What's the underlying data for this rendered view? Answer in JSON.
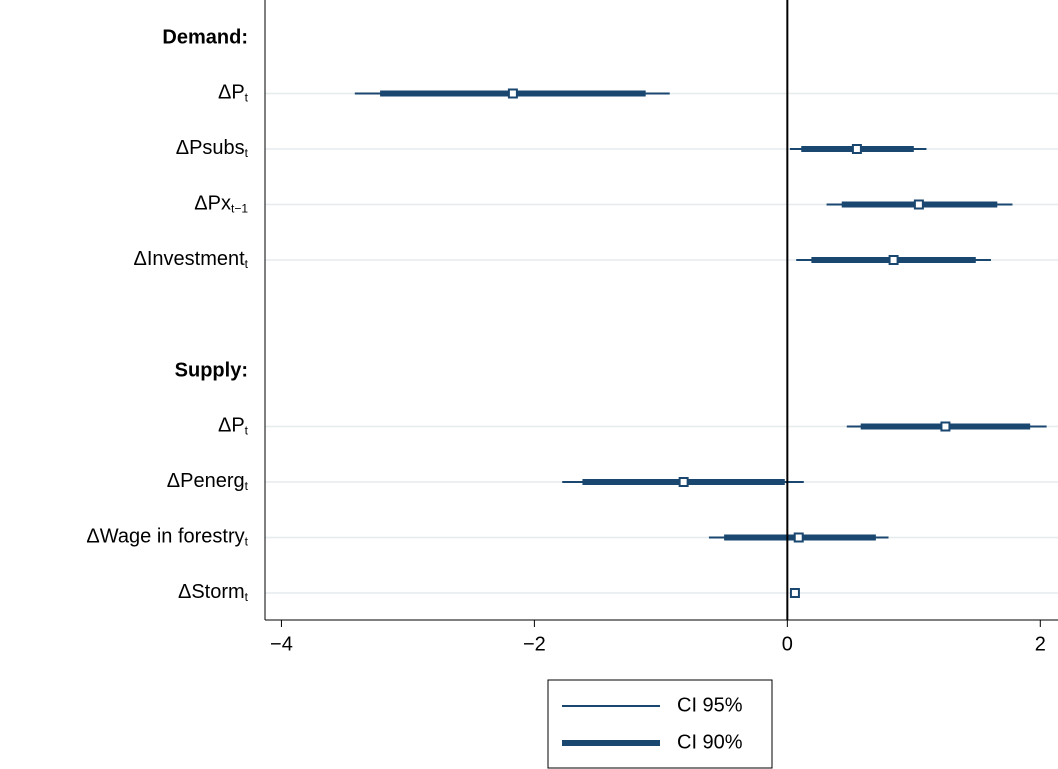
{
  "chart_data": {
    "type": "coefplot",
    "color": "#1a476f",
    "grid": true,
    "xline": 0,
    "xlim": [
      -4.13,
      2.14
    ],
    "xticks": [
      {
        "value": -4,
        "label": "−4"
      },
      {
        "value": -2,
        "label": "−2"
      },
      0,
      2
    ],
    "groups": [
      {
        "name": "Demand:",
        "rows": [
          {
            "label": "ΔP",
            "sub": "t",
            "estimate": -2.17,
            "ci95": [
              -3.42,
              -0.93
            ],
            "ci90": [
              -3.22,
              -1.12
            ]
          },
          {
            "label": "ΔPsubs",
            "sub": "t",
            "estimate": 0.55,
            "ci95": [
              0.02,
              1.1
            ],
            "ci90": [
              0.11,
              1.0
            ]
          },
          {
            "label": "ΔPx",
            "sub": "t−1",
            "estimate": 1.04,
            "ci95": [
              0.31,
              1.78
            ],
            "ci90": [
              0.43,
              1.66
            ]
          },
          {
            "label": "ΔInvestment",
            "sub": "t",
            "estimate": 0.84,
            "ci95": [
              0.07,
              1.61
            ],
            "ci90": [
              0.19,
              1.49
            ]
          }
        ]
      },
      {
        "name": "Supply:",
        "rows": [
          {
            "label": "ΔP",
            "sub": "t",
            "estimate": 1.25,
            "ci95": [
              0.47,
              2.05
            ],
            "ci90": [
              0.58,
              1.92
            ]
          },
          {
            "label": "ΔPenerg",
            "sub": "t",
            "estimate": -0.82,
            "ci95": [
              -1.78,
              0.13
            ],
            "ci90": [
              -1.62,
              -0.02
            ]
          },
          {
            "label": "ΔWage in forestry",
            "sub": "t",
            "estimate": 0.09,
            "ci95": [
              -0.62,
              0.8
            ],
            "ci90": [
              -0.5,
              0.7
            ]
          },
          {
            "label": "ΔStorm",
            "sub": "t",
            "estimate": 0.06,
            "ci95": [
              0.05,
              0.07
            ],
            "ci90": [
              0.05,
              0.07
            ]
          }
        ]
      }
    ],
    "legend": [
      "CI 95%",
      "CI 90%"
    ]
  }
}
